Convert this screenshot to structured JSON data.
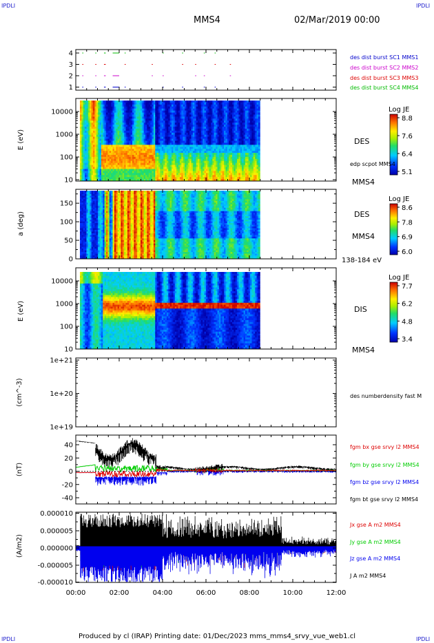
{
  "header": {
    "corner_left": "IPDLI",
    "corner_right": "IPDLI",
    "title": "MMS4",
    "date": "02/Mar/2019 00:00",
    "bottom_left": "IPDLI",
    "bottom_right": "IPDLI"
  },
  "footer": {
    "text": "Produced by cl (IRAP)   Printing date: 01/Dec/2023   mms_mms4_srvy_vue_web1.cl"
  },
  "colors": {
    "mms1": "#0000cc",
    "mms2": "#cc00cc",
    "mms3": "#dd0000",
    "mms4": "#00bb00",
    "bx": "#dd0000",
    "by": "#00cc00",
    "bz": "#0000ee",
    "bt": "#000000"
  },
  "chart_data": [
    {
      "type": "scatter",
      "panel": "burst-availability",
      "x_ticks": [
        "00:00",
        "02:00",
        "04:00",
        "06:00",
        "08:00",
        "10:00",
        "12:00"
      ],
      "y_ticks": [
        "1",
        "2",
        "3",
        "4"
      ],
      "legend": [
        "des dist burst SC1 MMS1",
        "des dist burst SC2 MMS2",
        "des dist burst SC3 MMS3",
        "des dist burst SC4 MMS4"
      ]
    },
    {
      "type": "heatmap",
      "panel": "des-energy",
      "ylabel": "E (eV)",
      "yscale": "log",
      "ylim": [
        10,
        30000
      ],
      "y_ticks": [
        "10",
        "100",
        "1000",
        "10000"
      ],
      "colorbar": {
        "title": "Log JE",
        "ticks": [
          "8.8",
          "7.6",
          "6.4",
          "5.1"
        ],
        "range": [
          5.1,
          8.8
        ]
      },
      "labels": [
        "DES",
        "edp scpot MMS4",
        "MMS4"
      ]
    },
    {
      "type": "heatmap",
      "panel": "des-pitch",
      "ylabel": "a (deg)",
      "ylim": [
        0,
        180
      ],
      "y_ticks": [
        "0",
        "50",
        "100",
        "150"
      ],
      "colorbar": {
        "title": "Log JE",
        "ticks": [
          "8.6",
          "7.8",
          "6.9",
          "6.0"
        ],
        "range": [
          6.0,
          8.6
        ]
      },
      "labels": [
        "DES",
        "MMS4",
        "138-184 eV"
      ]
    },
    {
      "type": "heatmap",
      "panel": "dis-energy",
      "ylabel": "E (eV)",
      "yscale": "log",
      "ylim": [
        10,
        30000
      ],
      "y_ticks": [
        "10",
        "100",
        "1000",
        "10000"
      ],
      "colorbar": {
        "title": "Log JE",
        "ticks": [
          "7.7",
          "6.2",
          "4.8",
          "3.4"
        ],
        "range": [
          3.4,
          7.7
        ]
      },
      "labels": [
        "DIS",
        "MMS4"
      ]
    },
    {
      "type": "line",
      "panel": "density",
      "ylabel": "(cm^-3)",
      "yscale": "log",
      "y_ticks": [
        "1e+21",
        "1e+20",
        "1e+19"
      ],
      "legend": [
        "des numberdensity fast M"
      ]
    },
    {
      "type": "line",
      "panel": "magnetic-field",
      "ylabel": "(nT)",
      "ylim": [
        -50,
        50
      ],
      "y_ticks": [
        "40",
        "20",
        "0",
        "-20",
        "-40"
      ],
      "legend": [
        "fgm bx gse srvy l2 MMS4",
        "fgm by gse srvy l2 MMS4",
        "fgm bz gse srvy l2 MMS4",
        "fgm bt gse srvy l2 MMS4"
      ]
    },
    {
      "type": "line",
      "panel": "current-density",
      "ylabel": "(A/m2)",
      "ylim": [
        -1e-05,
        1e-05
      ],
      "y_ticks": [
        "0.000010",
        "0.000005",
        "0.000000",
        "-0.000005",
        "-0.000010"
      ],
      "x_ticks": [
        "00:00",
        "02:00",
        "04:00",
        "06:00",
        "08:00",
        "10:00",
        "12:00"
      ],
      "legend": [
        "Jx gse A m2 MMS4",
        "Jy gse A m2 MMS4",
        "Jz gse A m2 MMS4",
        "J A m2 MMS4"
      ]
    }
  ]
}
